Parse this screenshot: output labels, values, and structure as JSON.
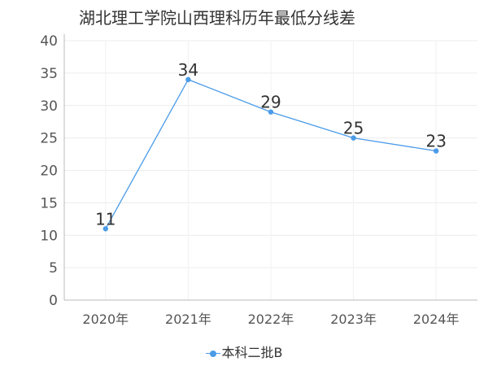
{
  "chart_data": {
    "type": "line",
    "title": "湖北理工学院山西理科历年最低分线差",
    "categories": [
      "2020年",
      "2021年",
      "2022年",
      "2023年",
      "2024年"
    ],
    "series": [
      {
        "name": "本科二批B",
        "values": [
          11,
          34,
          29,
          25,
          23
        ],
        "color": "#4a9be8"
      }
    ],
    "y_ticks": [
      "0",
      "5",
      "10",
      "15",
      "20",
      "25",
      "30",
      "35",
      "40"
    ],
    "ylim": [
      0,
      40
    ],
    "grid": true,
    "legend_position": "bottom"
  }
}
